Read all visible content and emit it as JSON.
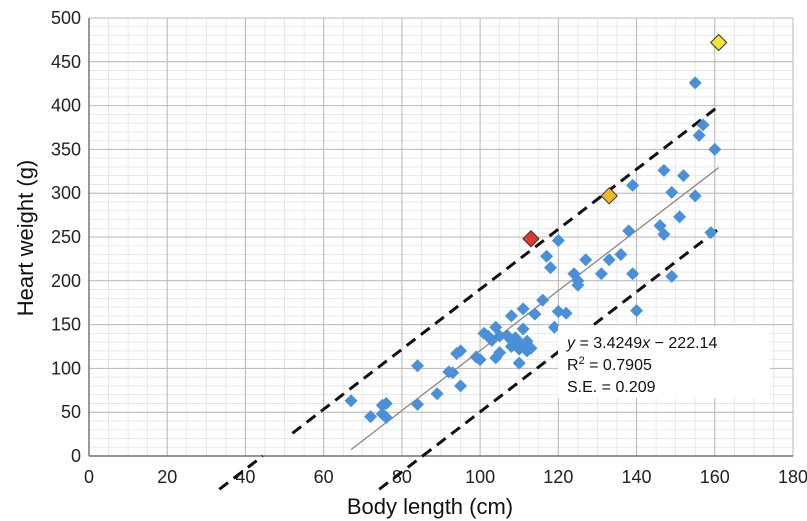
{
  "chart_data": {
    "type": "scatter",
    "xlabel": "Body length (cm)",
    "ylabel": "Heart weight (g)",
    "xlim": [
      0,
      180
    ],
    "ylim": [
      0,
      500
    ],
    "x_ticks": [
      0,
      20,
      40,
      60,
      80,
      100,
      120,
      140,
      160,
      180
    ],
    "y_ticks": [
      0,
      50,
      100,
      150,
      200,
      250,
      300,
      350,
      400,
      450,
      500
    ],
    "grid": true,
    "minor_grid": {
      "x_step": 5,
      "y_step": 10
    },
    "series": [
      {
        "marker": "diamond",
        "color": "#4a90d9",
        "points": [
          [
            67,
            63
          ],
          [
            72,
            45
          ],
          [
            75,
            48
          ],
          [
            75,
            58
          ],
          [
            76,
            60
          ],
          [
            76,
            44
          ],
          [
            84,
            103
          ],
          [
            84,
            59
          ],
          [
            89,
            71
          ],
          [
            92,
            96
          ],
          [
            93,
            95
          ],
          [
            94,
            117
          ],
          [
            95,
            80
          ],
          [
            95,
            120
          ],
          [
            99,
            113
          ],
          [
            100,
            110
          ],
          [
            101,
            140
          ],
          [
            102,
            137
          ],
          [
            103,
            132
          ],
          [
            104,
            147
          ],
          [
            104,
            112
          ],
          [
            105,
            118
          ],
          [
            105,
            137
          ],
          [
            107,
            137
          ],
          [
            108,
            125
          ],
          [
            108,
            132
          ],
          [
            108,
            160
          ],
          [
            109,
            135
          ],
          [
            110,
            122
          ],
          [
            110,
            106
          ],
          [
            110,
            130
          ],
          [
            111,
            145
          ],
          [
            111,
            126
          ],
          [
            111,
            168
          ],
          [
            112,
            120
          ],
          [
            112,
            131
          ],
          [
            113,
            123
          ],
          [
            114,
            162
          ],
          [
            116,
            178
          ],
          [
            117,
            228
          ],
          [
            118,
            215
          ],
          [
            119,
            147
          ],
          [
            120,
            246
          ],
          [
            120,
            165
          ],
          [
            122,
            163
          ],
          [
            123,
            133
          ],
          [
            124,
            208
          ],
          [
            125,
            195
          ],
          [
            125,
            200
          ],
          [
            125,
            83
          ],
          [
            127,
            224
          ],
          [
            131,
            208
          ],
          [
            133,
            224
          ],
          [
            136,
            230
          ],
          [
            138,
            257
          ],
          [
            139,
            309
          ],
          [
            139,
            208
          ],
          [
            140,
            166
          ],
          [
            146,
            263
          ],
          [
            147,
            253
          ],
          [
            147,
            326
          ],
          [
            149,
            205
          ],
          [
            149,
            301
          ],
          [
            151,
            273
          ],
          [
            152,
            320
          ],
          [
            155,
            297
          ],
          [
            155,
            426
          ],
          [
            156,
            366
          ],
          [
            157,
            378
          ],
          [
            159,
            255
          ],
          [
            160,
            350
          ]
        ]
      }
    ],
    "highlighted_points": [
      {
        "x": 113,
        "y": 248,
        "color": "#e03a2f"
      },
      {
        "x": 133,
        "y": 297,
        "color": "#f2b824"
      },
      {
        "x": 161,
        "y": 472,
        "color": "#f7e03a"
      }
    ],
    "regression_line": {
      "slope": 3.4249,
      "intercept": -222.14,
      "x_range": [
        67,
        161
      ]
    },
    "confidence_bands": {
      "offset": 70,
      "x_range": [
        52,
        161
      ]
    },
    "annotation": {
      "eq_var": "y",
      "eq_rest": " = 3.4249",
      "eq_var2": "x",
      "eq_rest2": " − 222.14",
      "r2_label": "R",
      "r2_sup": "2",
      "r2_value": " = 0.7905",
      "se_text": "S.E. = 0.209"
    }
  }
}
